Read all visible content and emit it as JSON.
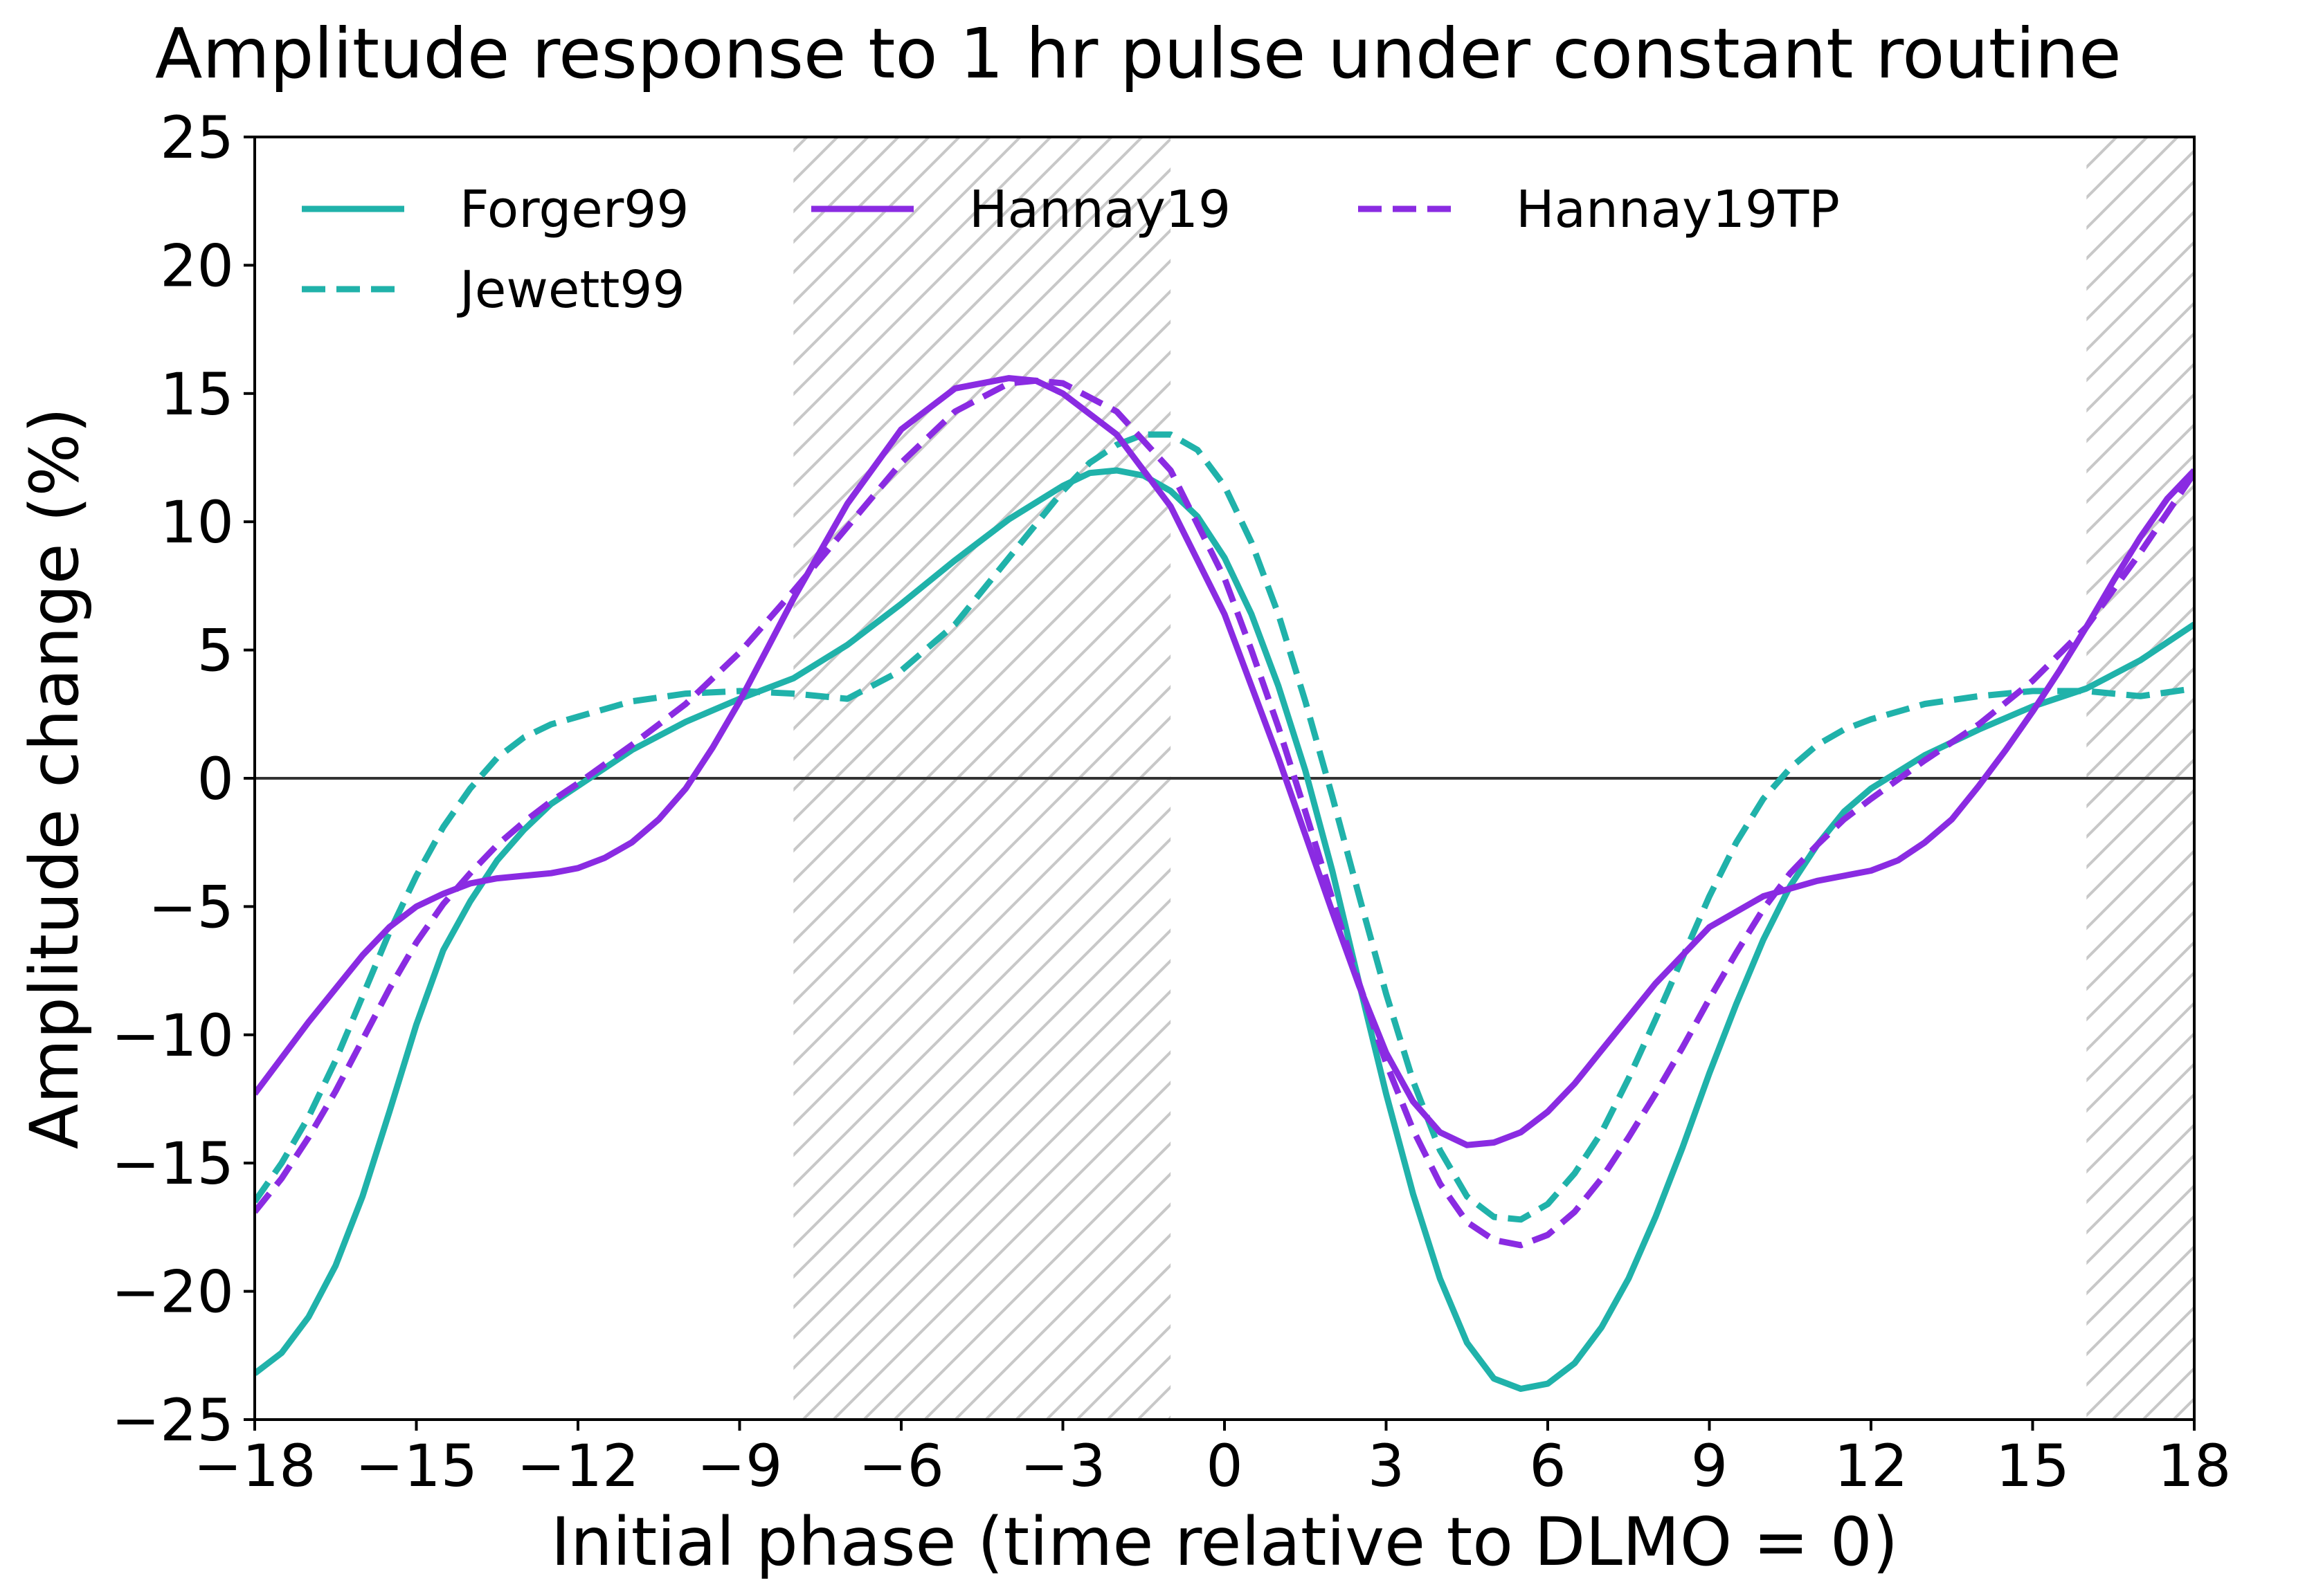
{
  "chart_data": {
    "type": "line",
    "title": "Amplitude response to 1 hr pulse under constant routine",
    "xlabel": "Initial phase (time relative to DLMO = 0)",
    "ylabel": "Amplitude change (%)",
    "xlim": [
      -18,
      18
    ],
    "ylim": [
      -25,
      25
    ],
    "xticks": [
      -18,
      -15,
      -12,
      -9,
      -6,
      -3,
      0,
      3,
      6,
      9,
      12,
      15,
      18
    ],
    "yticks": [
      -25,
      -20,
      -15,
      -10,
      -5,
      0,
      5,
      10,
      15,
      20,
      25
    ],
    "xtick_labels": [
      "−18",
      "−15",
      "−12",
      "−9",
      "−6",
      "−3",
      "0",
      "3",
      "6",
      "9",
      "12",
      "15",
      "18"
    ],
    "ytick_labels": [
      "−25",
      "−20",
      "−15",
      "−10",
      "−5",
      "0",
      "5",
      "10",
      "15",
      "20",
      "25"
    ],
    "grid": false,
    "legend_position": "top",
    "shaded_regions": [
      {
        "x_start": -8,
        "x_end": -1,
        "pattern": "hatched"
      },
      {
        "x_start": 16,
        "x_end": 18,
        "pattern": "hatched"
      }
    ],
    "reference_line": {
      "y": 0,
      "color": "#333333"
    },
    "series": [
      {
        "name": "Forger99",
        "color": "#20b2aa",
        "style": "solid",
        "x": [
          -18,
          -17.5,
          -17,
          -16.5,
          -16,
          -15.5,
          -15,
          -14.5,
          -14,
          -13.5,
          -13,
          -12.5,
          -12,
          -11,
          -10,
          -9,
          -8,
          -7,
          -6,
          -5,
          -4,
          -3,
          -2.5,
          -2,
          -1.5,
          -1,
          -0.5,
          0,
          0.5,
          1,
          1.5,
          2,
          2.5,
          3,
          3.5,
          4,
          4.5,
          5,
          5.5,
          6,
          6.5,
          7,
          7.5,
          8,
          8.5,
          9,
          9.5,
          10,
          10.5,
          11,
          11.5,
          12,
          13,
          14,
          15,
          16,
          17,
          18
        ],
        "y": [
          -23.2,
          -22.4,
          -21.0,
          -19.0,
          -16.3,
          -13.0,
          -9.6,
          -6.7,
          -4.8,
          -3.2,
          -2.0,
          -1.0,
          -0.3,
          1.1,
          2.2,
          3.1,
          3.9,
          5.2,
          6.8,
          8.5,
          10.1,
          11.4,
          11.9,
          12.0,
          11.8,
          11.2,
          10.2,
          8.6,
          6.4,
          3.6,
          0.3,
          -3.6,
          -8.0,
          -12.3,
          -16.2,
          -19.5,
          -22.0,
          -23.4,
          -23.8,
          -23.6,
          -22.8,
          -21.4,
          -19.5,
          -17.1,
          -14.4,
          -11.5,
          -8.8,
          -6.3,
          -4.2,
          -2.6,
          -1.3,
          -0.4,
          0.9,
          1.9,
          2.8,
          3.5,
          4.6,
          6.0
        ]
      },
      {
        "name": "Jewett99",
        "color": "#20b2aa",
        "style": "dashed",
        "x": [
          -18,
          -17.5,
          -17,
          -16.5,
          -16,
          -15.5,
          -15,
          -14.5,
          -14,
          -13.5,
          -13,
          -12.5,
          -12,
          -11,
          -10,
          -9,
          -8,
          -7,
          -6,
          -5,
          -4,
          -3,
          -2.5,
          -2,
          -1.5,
          -1,
          -0.5,
          0,
          0.5,
          1,
          1.5,
          2,
          2.5,
          3,
          3.5,
          4,
          4.5,
          5,
          5.5,
          6,
          6.5,
          7,
          7.5,
          8,
          8.5,
          9,
          9.5,
          10,
          10.5,
          11,
          11.5,
          12,
          13,
          14,
          15,
          16,
          17,
          18
        ],
        "y": [
          -16.5,
          -15.0,
          -13.2,
          -11.0,
          -8.5,
          -6.0,
          -3.8,
          -1.9,
          -0.4,
          0.8,
          1.6,
          2.1,
          2.4,
          3.0,
          3.3,
          3.4,
          3.3,
          3.1,
          4.2,
          6.0,
          8.6,
          11.2,
          12.3,
          13.0,
          13.4,
          13.4,
          12.8,
          11.4,
          9.2,
          6.4,
          3.0,
          -0.7,
          -4.6,
          -8.4,
          -11.8,
          -14.5,
          -16.3,
          -17.1,
          -17.2,
          -16.6,
          -15.4,
          -13.8,
          -11.7,
          -9.4,
          -7.0,
          -4.6,
          -2.5,
          -0.8,
          0.4,
          1.3,
          1.9,
          2.3,
          2.9,
          3.2,
          3.4,
          3.4,
          3.2,
          3.5
        ]
      },
      {
        "name": "Hannay19",
        "color": "#8a2be2",
        "style": "solid",
        "x": [
          -18,
          -17.5,
          -17,
          -16.5,
          -16,
          -15.5,
          -15,
          -14.5,
          -14,
          -13.5,
          -13,
          -12.5,
          -12,
          -11.5,
          -11,
          -10.5,
          -10,
          -9.5,
          -9,
          -8.5,
          -8,
          -7,
          -6,
          -5,
          -4,
          -3.5,
          -3,
          -2,
          -1,
          0,
          0.5,
          1,
          1.5,
          2,
          2.5,
          3,
          3.5,
          4,
          4.5,
          5,
          5.5,
          6,
          6.5,
          7,
          7.5,
          8,
          9,
          10,
          11,
          12,
          12.5,
          13,
          13.5,
          14,
          14.5,
          15,
          15.5,
          16,
          16.5,
          17,
          17.5,
          18
        ],
        "y": [
          -12.3,
          -10.9,
          -9.5,
          -8.2,
          -6.9,
          -5.8,
          -5.0,
          -4.5,
          -4.1,
          -3.9,
          -3.8,
          -3.7,
          -3.5,
          -3.1,
          -2.5,
          -1.6,
          -0.4,
          1.2,
          3.0,
          5.0,
          7.0,
          10.7,
          13.6,
          15.2,
          15.6,
          15.5,
          15.0,
          13.4,
          10.6,
          6.4,
          3.6,
          0.8,
          -2.2,
          -5.2,
          -8.1,
          -10.7,
          -12.6,
          -13.8,
          -14.3,
          -14.2,
          -13.8,
          -13.0,
          -11.9,
          -10.6,
          -9.3,
          -8.0,
          -5.8,
          -4.6,
          -4.0,
          -3.6,
          -3.2,
          -2.5,
          -1.6,
          -0.3,
          1.1,
          2.6,
          4.2,
          5.9,
          7.7,
          9.4,
          10.9,
          12.0
        ]
      },
      {
        "name": "Hannay19TP",
        "color": "#8a2be2",
        "style": "dashed",
        "x": [
          -18,
          -17.5,
          -17,
          -16.5,
          -16,
          -15.5,
          -15,
          -14.5,
          -14,
          -13.5,
          -13,
          -12.5,
          -12,
          -11,
          -10,
          -9,
          -8,
          -7,
          -6,
          -5,
          -4,
          -3.5,
          -3,
          -2,
          -1,
          0,
          0.5,
          1,
          1.5,
          2,
          2.5,
          3,
          3.5,
          4,
          4.5,
          5,
          5.5,
          6,
          6.5,
          7,
          7.5,
          8,
          8.5,
          9,
          9.5,
          10,
          10.5,
          11,
          11.5,
          12,
          13,
          14,
          15,
          16,
          17,
          18
        ],
        "y": [
          -16.9,
          -15.6,
          -14.0,
          -12.2,
          -10.2,
          -8.2,
          -6.4,
          -4.9,
          -3.7,
          -2.6,
          -1.7,
          -0.9,
          -0.2,
          1.3,
          2.9,
          4.9,
          7.3,
          9.8,
          12.3,
          14.3,
          15.4,
          15.5,
          15.4,
          14.3,
          12.0,
          7.8,
          5.0,
          2.0,
          -1.3,
          -4.7,
          -8.0,
          -11.1,
          -13.7,
          -15.8,
          -17.3,
          -18.0,
          -18.2,
          -17.8,
          -16.9,
          -15.6,
          -14.0,
          -12.3,
          -10.5,
          -8.6,
          -6.8,
          -5.1,
          -3.7,
          -2.6,
          -1.6,
          -0.8,
          0.7,
          2.1,
          3.8,
          5.9,
          8.8,
          11.9
        ]
      }
    ]
  }
}
